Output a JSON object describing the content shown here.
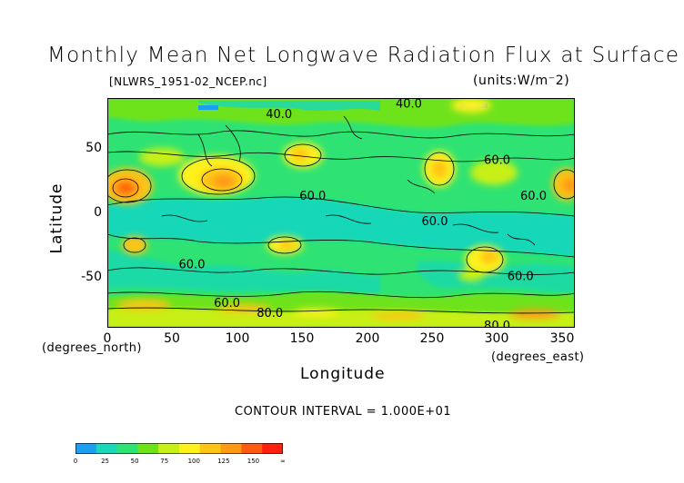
{
  "chart_data": {
    "type": "heatmap",
    "title": "Monthly Mean Net Longwave Radiation Flux at Surface",
    "subtitle": "[NLWRS_1951-02_NCEP.nc]",
    "units_label": "(units:W/m^2)",
    "xlabel": "Longitude",
    "ylabel": "Latitude",
    "x_unit_label": "(degrees_east)",
    "y_unit_label": "(degrees_north)",
    "xlim": [
      0,
      360
    ],
    "ylim": [
      -90,
      90
    ],
    "xticks": [
      "0",
      "50",
      "100",
      "150",
      "200",
      "250",
      "300",
      "350"
    ],
    "yticks": [
      "50",
      "0",
      "-50"
    ],
    "contour_interval_text": "CONTOUR INTERVAL = 1.000E+01",
    "contour_labels": [
      {
        "text": "40.0",
        "lon": 122,
        "lat": 78
      },
      {
        "text": "40.0",
        "lon": 222,
        "lat": 86
      },
      {
        "text": "60.0",
        "lon": 290,
        "lat": 42
      },
      {
        "text": "60.0",
        "lon": 148,
        "lat": 14
      },
      {
        "text": "60.0",
        "lon": 318,
        "lat": 14
      },
      {
        "text": "60.0",
        "lon": 242,
        "lat": -6
      },
      {
        "text": "60.0",
        "lon": 55,
        "lat": -40
      },
      {
        "text": "60.0",
        "lon": 308,
        "lat": -49
      },
      {
        "text": "60.0",
        "lon": 82,
        "lat": -70
      },
      {
        "text": "80.0",
        "lon": 115,
        "lat": -78
      },
      {
        "text": "80.0",
        "lon": 290,
        "lat": -88
      }
    ],
    "colorbar": {
      "colors": [
        "#1c9ff0",
        "#19d7b8",
        "#2ee373",
        "#6ee31c",
        "#c8f016",
        "#fff21a",
        "#ffc413",
        "#ff9a14",
        "#ff5a11",
        "#ff1f0f"
      ],
      "tick_labels": [
        "0",
        "25",
        "50",
        "75",
        "100",
        "125",
        "150",
        "∞"
      ]
    },
    "legend_placement": "bottom-left",
    "grid": false
  }
}
